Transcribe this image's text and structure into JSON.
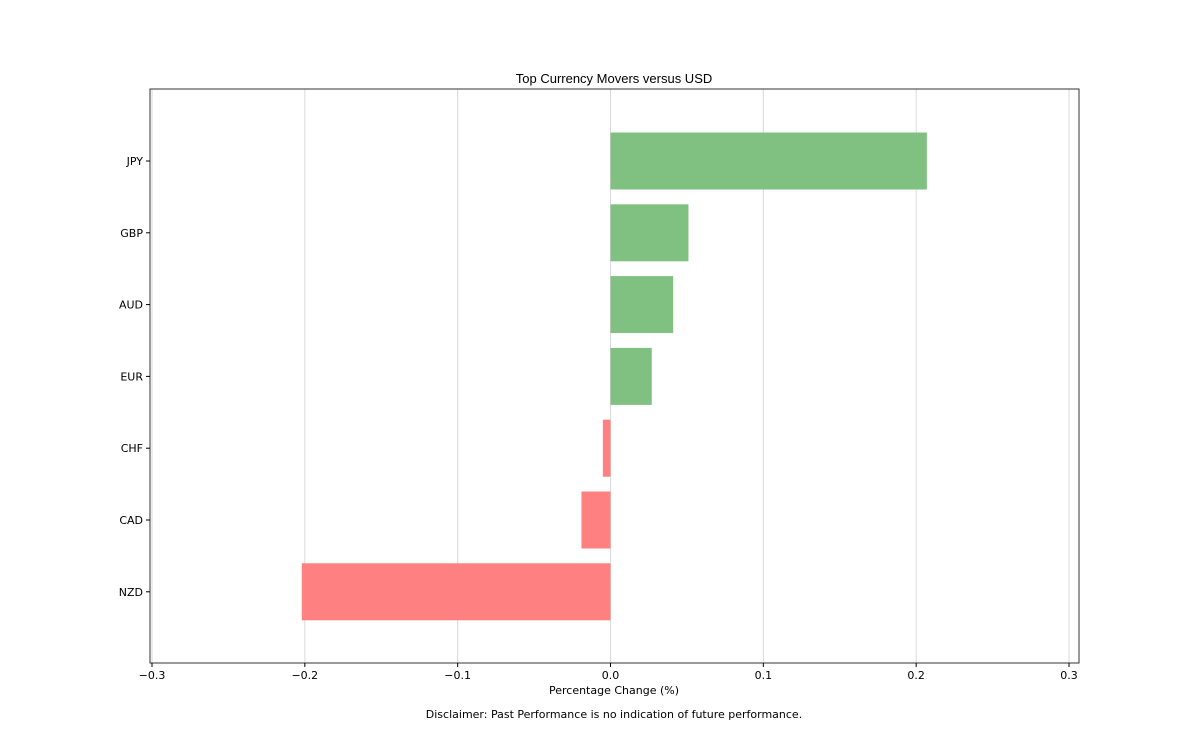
{
  "chart_data": {
    "type": "bar",
    "orientation": "horizontal",
    "title": "Top Currency Movers versus USD",
    "xlabel": "Percentage Change (%)",
    "ylabel": "",
    "categories": [
      "JPY",
      "GBP",
      "AUD",
      "EUR",
      "CHF",
      "CAD",
      "NZD"
    ],
    "values": [
      0.207,
      0.051,
      0.041,
      0.027,
      -0.005,
      -0.019,
      -0.202
    ],
    "xlim": [
      -0.3,
      0.3
    ],
    "xticks": [
      -0.3,
      -0.2,
      -0.1,
      0.0,
      0.1,
      0.2,
      0.3
    ],
    "xtick_labels": [
      "−0.3",
      "−0.2",
      "−0.1",
      "0.0",
      "0.1",
      "0.2",
      "0.3"
    ],
    "grid": "vertical",
    "colors": {
      "positive": "#80c080",
      "negative": "#ff8080",
      "grid": "#d9d9d9",
      "axes": "#333333"
    }
  },
  "footnote": "Disclaimer: Past Performance is no indication of future performance."
}
